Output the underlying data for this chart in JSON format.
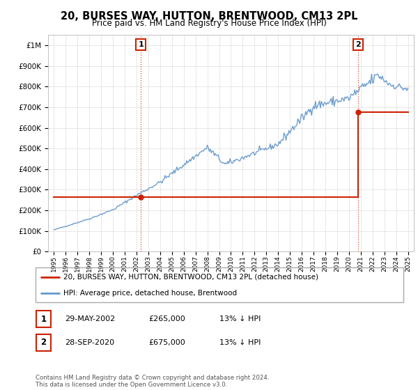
{
  "title": "20, BURSES WAY, HUTTON, BRENTWOOD, CM13 2PL",
  "subtitle": "Price paid vs. HM Land Registry's House Price Index (HPI)",
  "hpi_color": "#6699cc",
  "price_color": "#cc2200",
  "sale1_year": 2002.37,
  "sale1_price": 265000,
  "sale2_year": 2020.75,
  "sale2_price": 675000,
  "legend_line1": "20, BURSES WAY, HUTTON, BRENTWOOD, CM13 2PL (detached house)",
  "legend_line2": "HPI: Average price, detached house, Brentwood",
  "table_row1": [
    "1",
    "29-MAY-2002",
    "£265,000",
    "13% ↓ HPI"
  ],
  "table_row2": [
    "2",
    "28-SEP-2020",
    "£675,000",
    "13% ↓ HPI"
  ],
  "footer": "Contains HM Land Registry data © Crown copyright and database right 2024.\nThis data is licensed under the Open Government Licence v3.0.",
  "ylim": [
    0,
    1050000
  ],
  "xlim": [
    1994.5,
    2025.5
  ],
  "background_color": "#ffffff",
  "grid_color": "#dddddd"
}
